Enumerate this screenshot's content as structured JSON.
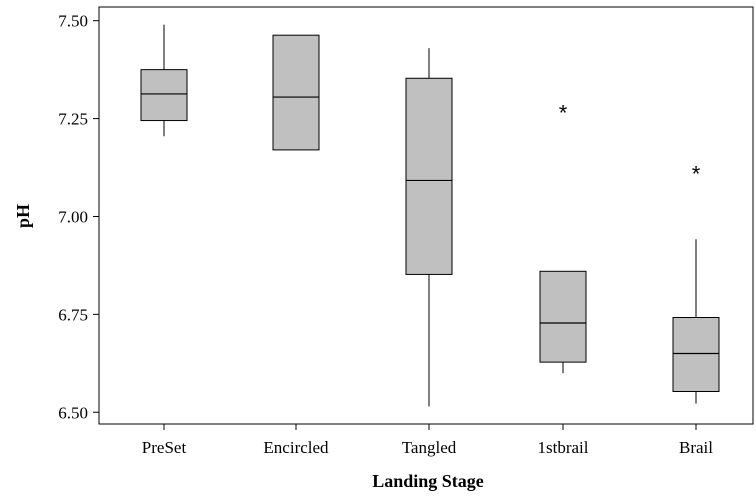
{
  "chart_data": {
    "type": "boxplot",
    "xlabel": "Landing Stage",
    "ylabel": "pH",
    "ylim": [
      6.47,
      7.535
    ],
    "yticks": [
      6.5,
      6.75,
      7.0,
      7.25,
      7.5
    ],
    "ytick_labels": [
      "6.50",
      "6.75",
      "7.00",
      "7.25",
      "7.50"
    ],
    "grid": false,
    "categories": [
      "PreSet",
      "Encircled",
      "Tangled",
      "1stbrail",
      "Brail"
    ],
    "boxes": [
      {
        "category": "PreSet",
        "whisker_low": 7.205,
        "q1": 7.245,
        "median": 7.313,
        "q3": 7.375,
        "whisker_high": 7.49,
        "outliers": []
      },
      {
        "category": "Encircled",
        "whisker_low": 7.17,
        "q1": 7.17,
        "median": 7.305,
        "q3": 7.463,
        "whisker_high": 7.463,
        "outliers": []
      },
      {
        "category": "Tangled",
        "whisker_low": 6.515,
        "q1": 6.852,
        "median": 7.092,
        "q3": 7.353,
        "whisker_high": 7.43,
        "outliers": []
      },
      {
        "category": "1stbrail",
        "whisker_low": 6.6,
        "q1": 6.628,
        "median": 6.728,
        "q3": 6.86,
        "whisker_high": 6.86,
        "outliers": [
          7.268
        ]
      },
      {
        "category": "Brail",
        "whisker_low": 6.522,
        "q1": 6.553,
        "median": 6.65,
        "q3": 6.742,
        "whisker_high": 6.942,
        "outliers": [
          7.112
        ]
      }
    ],
    "box_fill": "#c0c0c0",
    "outlier_marker": "*"
  }
}
